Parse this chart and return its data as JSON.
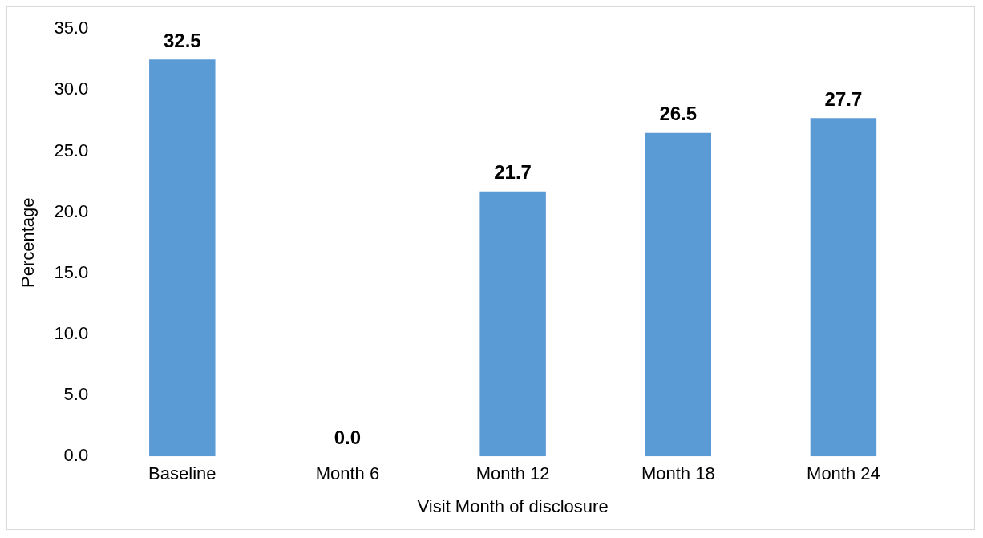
{
  "chart_data": {
    "type": "bar",
    "xlabel": "Visit Month of disclosure",
    "ylabel": "Percentage",
    "categories": [
      "Baseline",
      "Month 6",
      "Month 12",
      "Month 18",
      "Month 24"
    ],
    "values": [
      32.5,
      0.0,
      21.7,
      26.5,
      27.7
    ],
    "value_labels": [
      "32.5",
      "0.0",
      "21.7",
      "26.5",
      "27.7"
    ],
    "color": "#5b9bd5",
    "ylim": [
      0,
      35
    ],
    "yticks": [
      {
        "value": 0,
        "label": "0.0"
      },
      {
        "value": 5,
        "label": "5.0"
      },
      {
        "value": 10,
        "label": "10.0"
      },
      {
        "value": 15,
        "label": "15.0"
      },
      {
        "value": 20,
        "label": "20.0"
      },
      {
        "value": 25,
        "label": "25.0"
      },
      {
        "value": 30,
        "label": "30.0"
      },
      {
        "value": 35,
        "label": "35.0"
      }
    ],
    "grid": false,
    "legend": false
  }
}
